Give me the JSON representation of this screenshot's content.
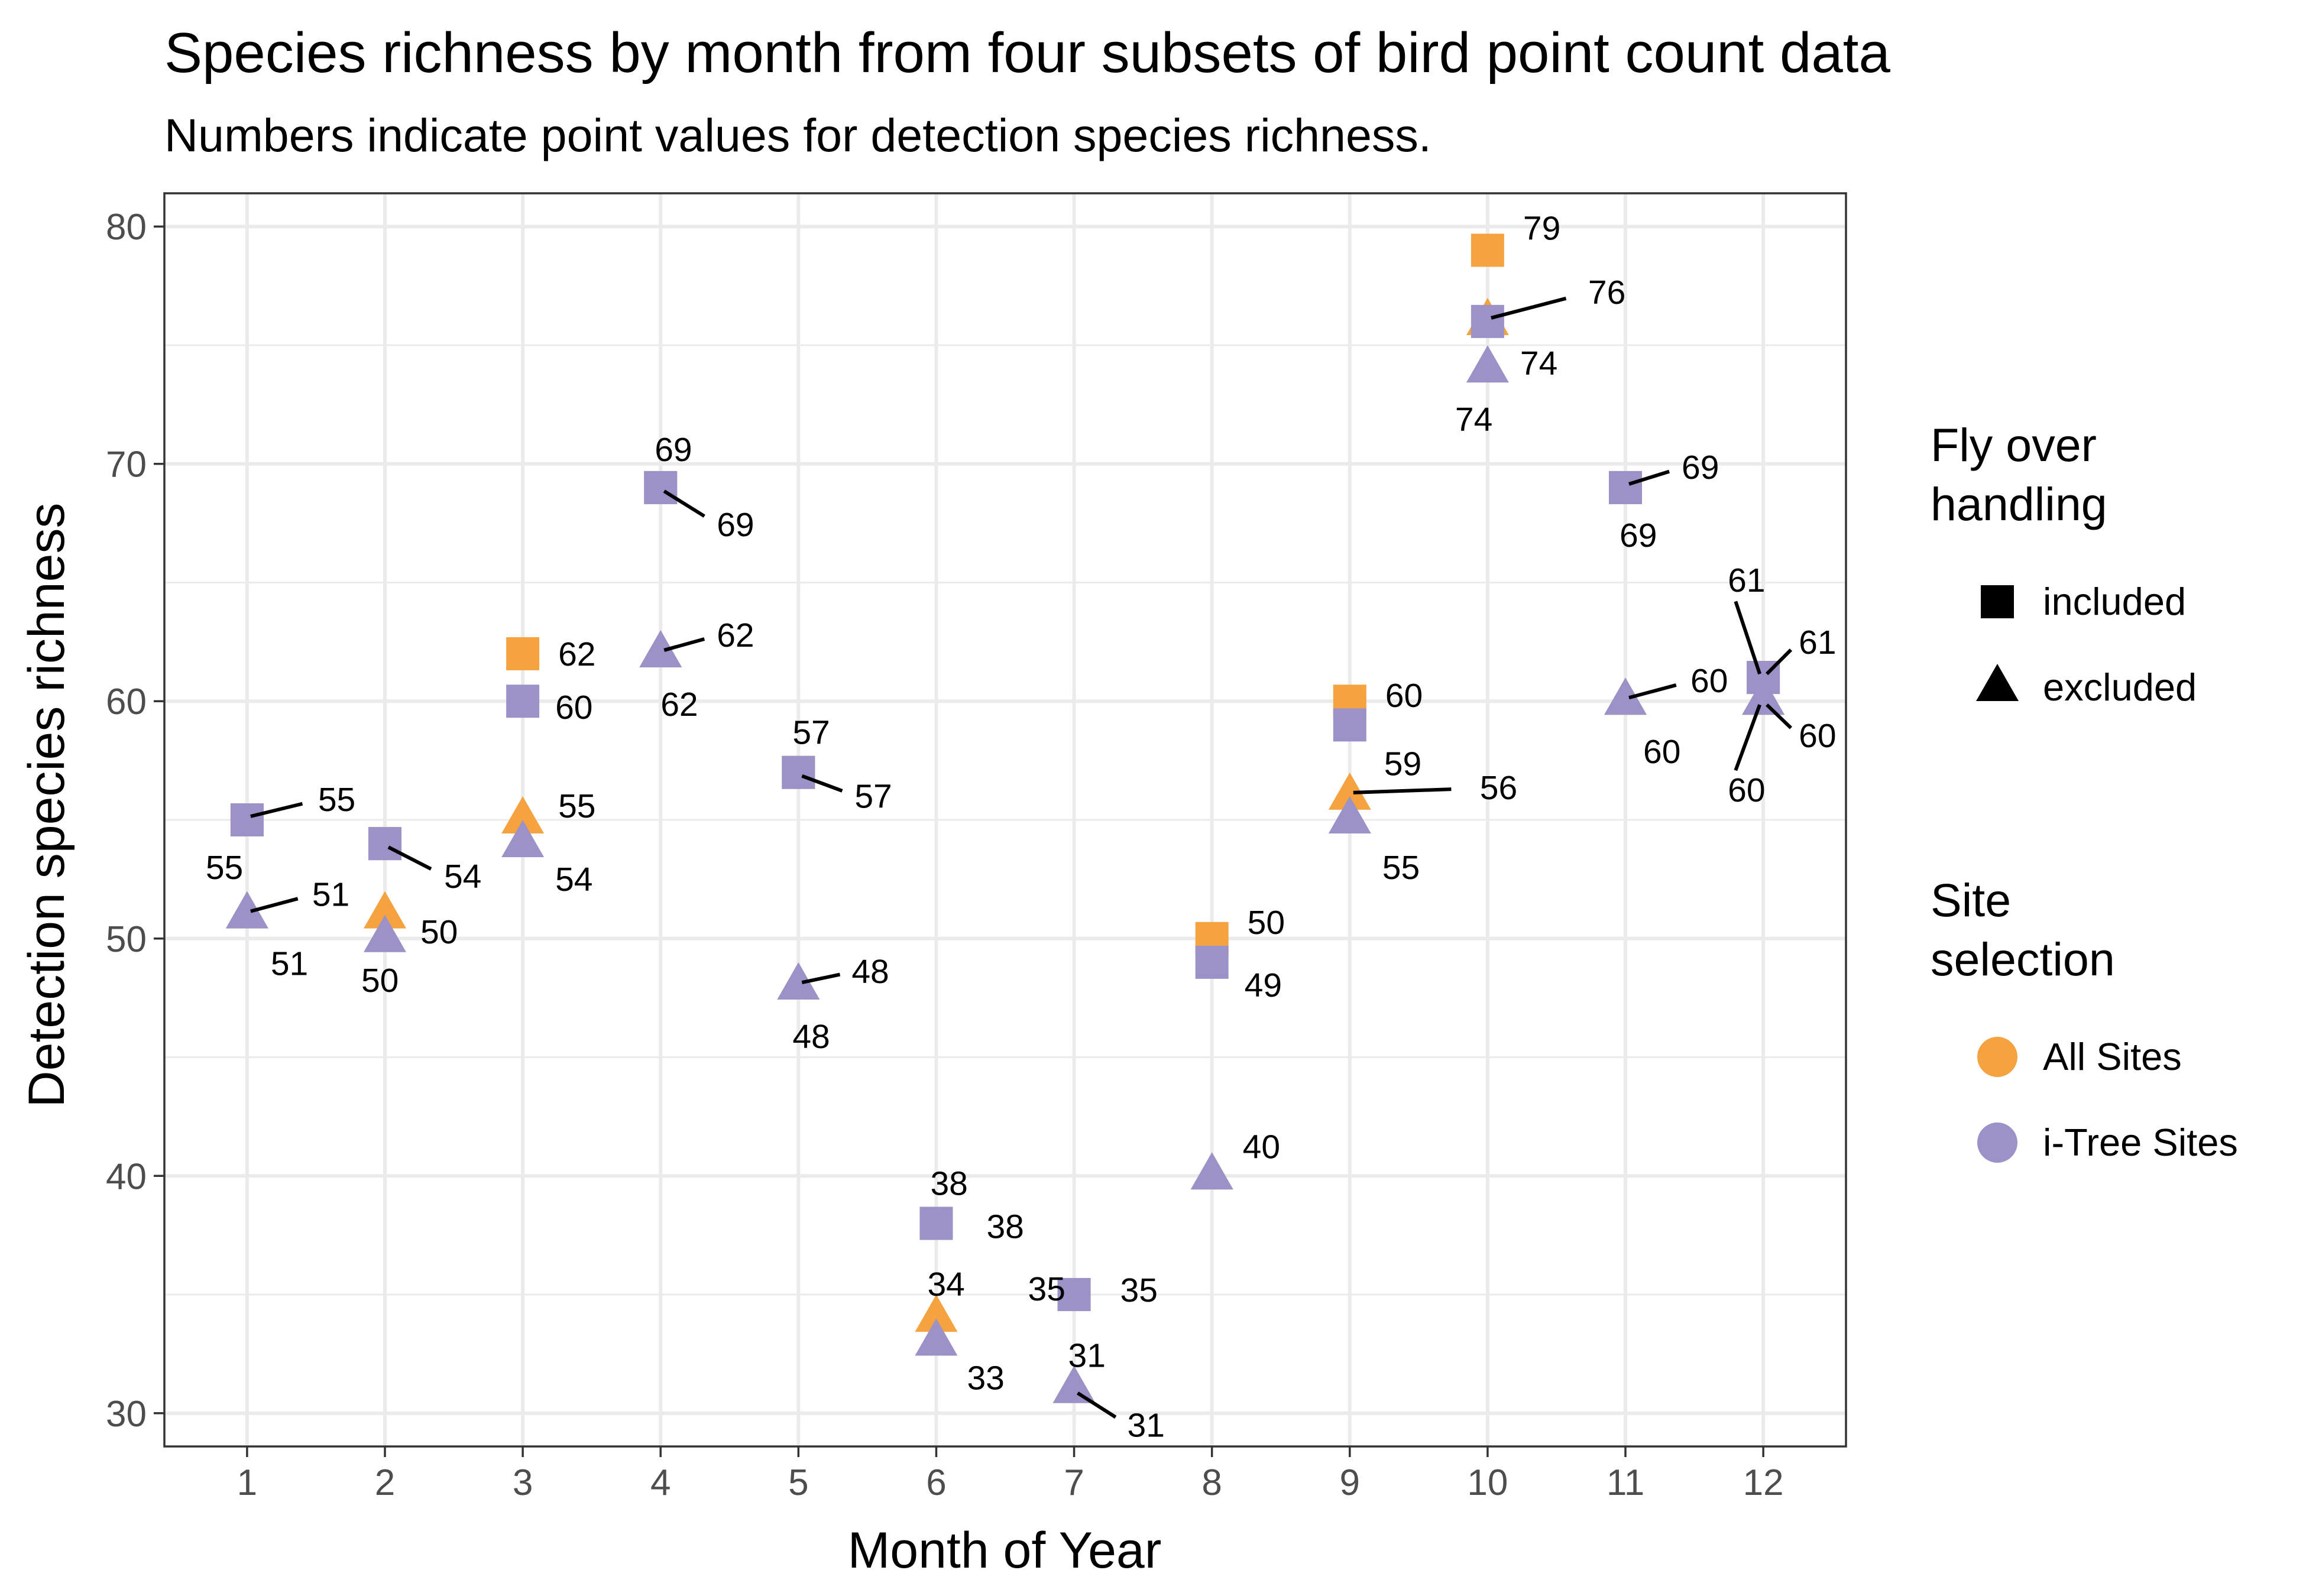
{
  "chart_data": {
    "type": "scatter",
    "title": "Species richness by month from four subsets of bird point count data",
    "subtitle": "Numbers indicate point values for detection species richness.",
    "xlabel": "Month of Year",
    "ylabel": "Detection species richness",
    "xlim": [
      0.4,
      12.6
    ],
    "ylim": [
      28.6,
      81.4
    ],
    "x_ticks": [
      1,
      2,
      3,
      4,
      5,
      6,
      7,
      8,
      9,
      10,
      11,
      12
    ],
    "y_ticks": [
      30,
      40,
      50,
      60,
      70,
      80
    ],
    "grid": true,
    "legend_position": "right",
    "colors": {
      "All Sites": "#F4A340",
      "i-Tree Sites": "#9C92C8"
    },
    "legends": [
      {
        "title": "Fly over\nhandling",
        "items": [
          {
            "label": "included",
            "shape": "square"
          },
          {
            "label": "excluded",
            "shape": "triangle"
          }
        ]
      },
      {
        "title": "Site\nselection",
        "items": [
          {
            "label": "All Sites",
            "color": "#F4A340"
          },
          {
            "label": "i-Tree Sites",
            "color": "#9C92C8"
          }
        ]
      }
    ],
    "series": [
      {
        "name": "All Sites, included",
        "site": "All Sites",
        "fly_over": "included",
        "shape": "square",
        "color": "#F4A340",
        "points": [
          [
            1,
            55
          ],
          [
            2,
            54
          ],
          [
            3,
            62
          ],
          [
            4,
            69
          ],
          [
            5,
            57
          ],
          [
            6,
            38
          ],
          [
            7,
            35
          ],
          [
            8,
            50
          ],
          [
            9,
            60
          ],
          [
            10,
            79
          ],
          [
            11,
            69
          ],
          [
            12,
            61
          ]
        ]
      },
      {
        "name": "All Sites, excluded",
        "site": "All Sites",
        "fly_over": "excluded",
        "shape": "triangle",
        "color": "#F4A340",
        "points": [
          [
            1,
            51
          ],
          [
            2,
            51
          ],
          [
            3,
            55
          ],
          [
            4,
            62
          ],
          [
            5,
            48
          ],
          [
            6,
            34
          ],
          [
            7,
            31
          ],
          [
            8,
            40
          ],
          [
            9,
            56
          ],
          [
            10,
            76
          ],
          [
            11,
            60
          ],
          [
            12,
            60
          ]
        ]
      },
      {
        "name": "i-Tree Sites, included",
        "site": "i-Tree Sites",
        "fly_over": "included",
        "shape": "square",
        "color": "#9C92C8",
        "points": [
          [
            1,
            55
          ],
          [
            2,
            54
          ],
          [
            3,
            60
          ],
          [
            4,
            69
          ],
          [
            5,
            57
          ],
          [
            6,
            38
          ],
          [
            7,
            35
          ],
          [
            8,
            49
          ],
          [
            9,
            59
          ],
          [
            10,
            76
          ],
          [
            11,
            69
          ],
          [
            12,
            61
          ]
        ]
      },
      {
        "name": "i-Tree Sites, excluded",
        "site": "i-Tree Sites",
        "fly_over": "excluded",
        "shape": "triangle",
        "color": "#9C92C8",
        "points": [
          [
            1,
            51
          ],
          [
            2,
            50
          ],
          [
            3,
            54
          ],
          [
            4,
            62
          ],
          [
            5,
            48
          ],
          [
            6,
            33
          ],
          [
            7,
            31
          ],
          [
            8,
            40
          ],
          [
            9,
            55
          ],
          [
            10,
            74
          ],
          [
            11,
            60
          ],
          [
            12,
            60
          ]
        ]
      }
    ]
  }
}
